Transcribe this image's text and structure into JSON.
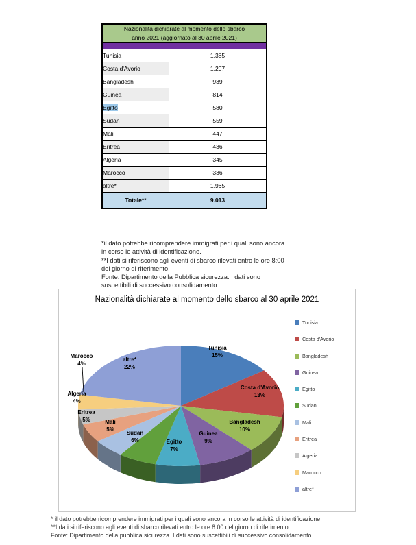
{
  "table": {
    "title_line1": "Nazionalità dichiarate al momento dello sbarco",
    "title_line2": "anno 2021 (aggiornato al 30 aprile 2021)",
    "rows": [
      {
        "name": "Tunisia",
        "value": "1.385",
        "shaded": false,
        "highlighted": false
      },
      {
        "name": "Costa d'Avorio",
        "value": "1.207",
        "shaded": true,
        "highlighted": false
      },
      {
        "name": "Bangladesh",
        "value": "939",
        "shaded": false,
        "highlighted": false
      },
      {
        "name": "Guinea",
        "value": "814",
        "shaded": true,
        "highlighted": false
      },
      {
        "name": "Egitto",
        "value": "580",
        "shaded": false,
        "highlighted": true
      },
      {
        "name": "Sudan",
        "value": "559",
        "shaded": true,
        "highlighted": false
      },
      {
        "name": "Mali",
        "value": "447",
        "shaded": false,
        "highlighted": false
      },
      {
        "name": "Eritrea",
        "value": "436",
        "shaded": true,
        "highlighted": false
      },
      {
        "name": "Algeria",
        "value": "345",
        "shaded": false,
        "highlighted": false
      },
      {
        "name": "Marocco",
        "value": "336",
        "shaded": true,
        "highlighted": false
      },
      {
        "name": "altre*",
        "value": "1.965",
        "shaded": true,
        "highlighted": false
      }
    ],
    "total_label": "Totale**",
    "total_value": "9.013",
    "colors": {
      "header_green": "#A9C98C",
      "purple_band": "#7030A0",
      "total_blue": "#C3DCEE",
      "row_shade": "#EDEDED",
      "selection_highlight": "#9DC9EA"
    }
  },
  "table_footnotes": {
    "lines": [
      "*il dato potrebbe ricomprendere immigrati per i quali sono ancora",
      "in corso le attività di identificazione.",
      "**I dati si riferiscono agli eventi di sbarco rilevati entro le ore 8:00",
      "del giorno di riferimento.",
      " Fonte: Dipartimento della Pubblica sicurezza. I dati sono",
      "suscettibili di successivo consolidamento."
    ]
  },
  "chart_data": {
    "type": "pie",
    "style": "3d",
    "title": "Nazionalità dichiarate al momento dello sbarco al 30 aprile 2021",
    "categories": [
      "Tunisia",
      "Costa d'Avorio",
      "Bangladesh",
      "Guinea",
      "Egitto",
      "Sudan",
      "Mali",
      "Eritrea",
      "Algeria",
      "Marocco",
      "altre*"
    ],
    "values": [
      15,
      13,
      10,
      9,
      7,
      6,
      5,
      5,
      4,
      4,
      22
    ],
    "unit": "%",
    "colors": [
      "#4A7EBB",
      "#BE4B48",
      "#9BBB59",
      "#8064A2",
      "#4BACC6",
      "#61A03C",
      "#A9C1E2",
      "#E7A17F",
      "#C6C6C6",
      "#F6CE7F",
      "#8E9FD6"
    ],
    "legend_position": "right",
    "label_format": "category + percent",
    "start_angle_deg": 0,
    "direction": "clockwise"
  },
  "chart_footnotes": {
    "lines": [
      "* il dato potrebbe ricomprendere immigrati per i quali sono ancora in corso le attività di identificazione",
      "**I dati si riferiscono agli eventi di sbarco rilevati entro le ore 8:00 del giorno di riferimento",
      "Fonte: Dipartimento della pubblica sicurezza. I dati sono suscettibili di successivo consolidamento."
    ]
  }
}
